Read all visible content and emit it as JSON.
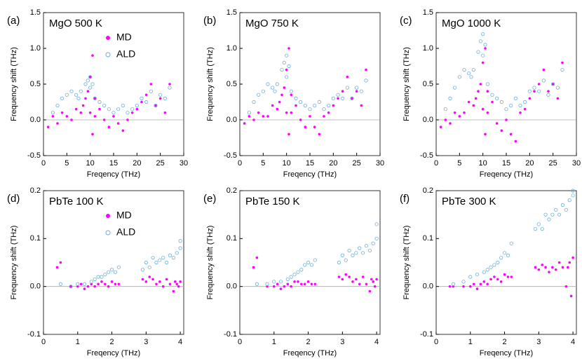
{
  "chart_data": [
    {
      "type": "scatter",
      "panel_label": "(a)",
      "title": "MgO 500 K",
      "xlabel": "Freqency (THz)",
      "ylabel": "Frequency shift (THz)",
      "xlim": [
        0,
        30
      ],
      "xticks": [
        0,
        5,
        10,
        15,
        20,
        25,
        30
      ],
      "ylim": [
        -0.5,
        1.5
      ],
      "yticks": [
        -0.5,
        {
          "value": 0,
          "label": "0.0"
        },
        0.5,
        {
          "value": 1,
          "label": "1.0"
        },
        1.5
      ],
      "legend": "upper center",
      "series": [
        {
          "name": "MD",
          "color": "#ff00ff",
          "marker": "filled",
          "x": [
            1,
            2,
            3,
            4,
            5,
            6,
            7,
            8,
            8.5,
            9,
            9.5,
            10,
            10,
            10.5,
            10.5,
            11,
            11,
            12,
            13,
            14,
            15,
            16,
            17,
            18,
            19,
            20,
            21,
            22,
            23,
            24,
            25,
            26,
            27
          ],
          "values": [
            -0.1,
            0.05,
            -0.05,
            0.1,
            0.05,
            0.0,
            0.15,
            0.1,
            0.2,
            0.3,
            0.4,
            0.6,
            0.1,
            0.9,
            -0.2,
            0.3,
            0.05,
            0.15,
            0.0,
            -0.1,
            0.05,
            -0.05,
            -0.15,
            0.0,
            0.1,
            0.15,
            0.25,
            0.35,
            0.5,
            0.2,
            0.3,
            0.1,
            0.5
          ]
        },
        {
          "name": "ALD",
          "color": "#6baed6",
          "marker": "hollow",
          "x": [
            2,
            3,
            4,
            5,
            6,
            7,
            7.5,
            8,
            9,
            9.5,
            10,
            10,
            10.5,
            11,
            12,
            13,
            14,
            15,
            16,
            17,
            18,
            19,
            20,
            21,
            22,
            23,
            24,
            25,
            26,
            27
          ],
          "values": [
            0.1,
            0.2,
            0.3,
            0.35,
            0.4,
            0.35,
            0.3,
            0.4,
            0.5,
            0.55,
            0.45,
            0.6,
            0.5,
            0.3,
            0.25,
            0.2,
            0.15,
            0.1,
            0.15,
            0.2,
            0.1,
            0.15,
            0.2,
            0.3,
            0.25,
            0.4,
            0.2,
            0.35,
            0.3,
            0.45
          ]
        }
      ]
    },
    {
      "type": "scatter",
      "panel_label": "(b)",
      "title": "MgO 750 K",
      "xlabel": "Freqency (THz)",
      "ylabel": "Frequency shift (THz)",
      "xlim": [
        0,
        30
      ],
      "xticks": [
        0,
        5,
        10,
        15,
        20,
        25,
        30
      ],
      "ylim": [
        -0.5,
        1.5
      ],
      "yticks": [
        -0.5,
        {
          "value": 0,
          "label": "0.0"
        },
        0.5,
        {
          "value": 1,
          "label": "1.0"
        },
        1.5
      ],
      "series": [
        {
          "color": "#ff00ff",
          "marker": "filled",
          "x": [
            1,
            2,
            3,
            4,
            5,
            6,
            7,
            8,
            8.5,
            9,
            9.5,
            10,
            10,
            10.5,
            10.5,
            11,
            11,
            12,
            13,
            14,
            15,
            16,
            17,
            18,
            19,
            20,
            21,
            22,
            23,
            24,
            25,
            26,
            27
          ],
          "values": [
            -0.05,
            0.05,
            0.0,
            0.1,
            0.05,
            0.05,
            0.2,
            0.15,
            0.25,
            0.35,
            0.45,
            0.7,
            0.1,
            1.0,
            -0.2,
            0.35,
            0.1,
            0.2,
            0.0,
            -0.1,
            0.05,
            -0.1,
            -0.2,
            0.05,
            0.1,
            0.2,
            0.3,
            0.4,
            0.6,
            0.3,
            0.4,
            0.2,
            0.7
          ]
        },
        {
          "color": "#6baed6",
          "marker": "hollow",
          "x": [
            2,
            3,
            4,
            5,
            6,
            7,
            7.5,
            8,
            9,
            9.5,
            10,
            10,
            10.5,
            11,
            12,
            13,
            14,
            15,
            16,
            17,
            18,
            19,
            20,
            21,
            22,
            23,
            24,
            25,
            26,
            27
          ],
          "values": [
            0.1,
            0.25,
            0.35,
            0.4,
            0.5,
            0.45,
            0.4,
            0.5,
            0.7,
            0.8,
            0.6,
            0.9,
            0.75,
            0.4,
            0.3,
            0.25,
            0.2,
            0.15,
            0.2,
            0.25,
            0.15,
            0.2,
            0.3,
            0.35,
            0.3,
            0.45,
            0.3,
            0.45,
            0.4,
            0.55
          ]
        }
      ]
    },
    {
      "type": "scatter",
      "panel_label": "(c)",
      "title": "MgO 1000 K",
      "xlabel": "Freqency (THz)",
      "ylabel": "Frequency shift (THz)",
      "xlim": [
        0,
        30
      ],
      "xticks": [
        0,
        5,
        10,
        15,
        20,
        25,
        30
      ],
      "ylim": [
        -0.5,
        1.5
      ],
      "yticks": [
        -0.5,
        {
          "value": 0,
          "label": "0.0"
        },
        0.5,
        {
          "value": 1,
          "label": "1.0"
        },
        1.5
      ],
      "series": [
        {
          "color": "#ff00ff",
          "marker": "filled",
          "x": [
            1,
            2,
            3,
            4,
            5,
            6,
            7,
            8,
            8.5,
            9,
            9.5,
            10,
            10,
            10.5,
            10.5,
            11,
            11,
            12,
            13,
            14,
            15,
            16,
            17,
            18,
            19,
            20,
            21,
            22,
            23,
            24,
            25,
            26,
            27
          ],
          "values": [
            -0.1,
            0.0,
            -0.05,
            0.1,
            0.05,
            0.1,
            0.25,
            0.2,
            0.3,
            0.4,
            0.5,
            0.8,
            0.15,
            1.0,
            -0.2,
            0.4,
            0.1,
            0.25,
            -0.05,
            -0.15,
            0.0,
            -0.2,
            -0.3,
            0.1,
            0.15,
            0.3,
            0.4,
            0.5,
            0.7,
            0.4,
            0.5,
            0.3,
            0.8
          ]
        },
        {
          "color": "#6baed6",
          "marker": "hollow",
          "x": [
            2,
            3,
            4,
            5,
            6,
            7,
            7.5,
            8,
            9,
            9.5,
            10,
            10,
            10.5,
            11,
            12,
            13,
            14,
            15,
            16,
            17,
            18,
            19,
            20,
            21,
            22,
            23,
            24,
            25,
            26,
            27
          ],
          "values": [
            0.15,
            0.3,
            0.45,
            0.6,
            0.7,
            0.65,
            0.6,
            0.7,
            0.95,
            1.1,
            0.9,
            1.2,
            1.05,
            0.5,
            0.35,
            0.3,
            0.25,
            0.15,
            0.2,
            0.3,
            0.2,
            0.25,
            0.4,
            0.45,
            0.4,
            0.55,
            0.35,
            0.5,
            0.45,
            0.7
          ]
        }
      ]
    },
    {
      "type": "scatter",
      "panel_label": "(d)",
      "title": "PbTe 100 K",
      "xlabel": "Freqency (THz)",
      "ylabel": "Frequency shift (THz)",
      "xlim": [
        0,
        4.1
      ],
      "xticks": [
        0,
        1,
        2,
        3,
        4
      ],
      "ylim": [
        -0.1,
        0.2
      ],
      "yticks": [
        -0.1,
        {
          "value": 0,
          "label": "0.0"
        },
        0.1,
        0.2
      ],
      "legend": "upper center",
      "series": [
        {
          "name": "MD",
          "color": "#ff00ff",
          "marker": "filled",
          "x": [
            0.4,
            0.5,
            0.8,
            1.0,
            1.1,
            1.2,
            1.3,
            1.4,
            1.5,
            1.6,
            1.7,
            1.8,
            1.9,
            2.0,
            2.1,
            2.2,
            2.9,
            3.0,
            3.1,
            3.2,
            3.3,
            3.4,
            3.5,
            3.6,
            3.7,
            3.8,
            3.85,
            3.9,
            3.95,
            4.0
          ],
          "values": [
            0.04,
            0.05,
            0.0,
            0.0,
            0.005,
            -0.005,
            0.0,
            0.005,
            0.0,
            0.005,
            0.01,
            0.005,
            0.0,
            0.01,
            0.005,
            0.005,
            0.015,
            0.01,
            0.02,
            0.015,
            0.005,
            0.01,
            0.0,
            0.015,
            0.005,
            -0.01,
            0.01,
            0.005,
            0.0,
            0.01
          ]
        },
        {
          "name": "ALD",
          "color": "#6baed6",
          "marker": "hollow",
          "x": [
            0.5,
            0.8,
            1.0,
            1.2,
            1.4,
            1.5,
            1.6,
            1.7,
            1.8,
            1.9,
            2.0,
            2.1,
            2.2,
            2.9,
            3.0,
            3.1,
            3.2,
            3.3,
            3.4,
            3.5,
            3.6,
            3.7,
            3.8,
            3.9,
            4.0,
            4.0
          ],
          "values": [
            0.005,
            0.0,
            0.005,
            0.005,
            0.01,
            0.015,
            0.02,
            0.02,
            0.025,
            0.03,
            0.035,
            0.03,
            0.04,
            0.035,
            0.05,
            0.04,
            0.06,
            0.05,
            0.055,
            0.06,
            0.05,
            0.065,
            0.06,
            0.07,
            0.08,
            0.095
          ]
        }
      ]
    },
    {
      "type": "scatter",
      "panel_label": "(e)",
      "title": "PbTe 150 K",
      "xlabel": "Freqency (THz)",
      "ylabel": "Frequency shift (THz)",
      "xlim": [
        0,
        4.1
      ],
      "xticks": [
        0,
        1,
        2,
        3,
        4
      ],
      "ylim": [
        -0.1,
        0.2
      ],
      "yticks": [
        -0.1,
        {
          "value": 0,
          "label": "0.0"
        },
        0.1,
        0.2
      ],
      "series": [
        {
          "color": "#ff00ff",
          "marker": "filled",
          "x": [
            0.4,
            0.5,
            0.8,
            1.0,
            1.1,
            1.2,
            1.3,
            1.4,
            1.5,
            1.6,
            1.7,
            1.8,
            1.9,
            2.0,
            2.1,
            2.2,
            2.9,
            3.0,
            3.1,
            3.2,
            3.3,
            3.4,
            3.5,
            3.6,
            3.7,
            3.8,
            3.85,
            3.9,
            3.95,
            4.0
          ],
          "values": [
            0.04,
            0.06,
            0.0,
            0.0,
            0.005,
            -0.005,
            0.0,
            0.005,
            0.0,
            0.01,
            0.01,
            0.005,
            0.005,
            0.01,
            0.005,
            0.005,
            0.02,
            0.015,
            0.025,
            0.02,
            0.01,
            0.015,
            0.005,
            0.02,
            0.005,
            -0.01,
            0.015,
            0.01,
            0.0,
            0.015
          ]
        },
        {
          "color": "#6baed6",
          "marker": "hollow",
          "x": [
            0.5,
            0.8,
            1.0,
            1.2,
            1.4,
            1.5,
            1.6,
            1.7,
            1.8,
            1.9,
            2.0,
            2.1,
            2.2,
            2.9,
            3.0,
            3.1,
            3.2,
            3.3,
            3.4,
            3.5,
            3.6,
            3.7,
            3.8,
            3.9,
            4.0,
            4.0
          ],
          "values": [
            0.005,
            0.005,
            0.01,
            0.01,
            0.015,
            0.02,
            0.025,
            0.03,
            0.035,
            0.045,
            0.05,
            0.045,
            0.055,
            0.05,
            0.065,
            0.055,
            0.075,
            0.065,
            0.07,
            0.08,
            0.07,
            0.085,
            0.075,
            0.09,
            0.1,
            0.13
          ]
        }
      ]
    },
    {
      "type": "scatter",
      "panel_label": "(f)",
      "title": "PbTe 300 K",
      "xlabel": "Freqency (THz)",
      "ylabel": "Frequency shift (THz)",
      "xlim": [
        0,
        4.1
      ],
      "xticks": [
        0,
        1,
        2,
        3,
        4
      ],
      "ylim": [
        -0.1,
        0.2
      ],
      "yticks": [
        -0.1,
        {
          "value": 0,
          "label": "0.0"
        },
        0.1,
        0.2
      ],
      "series": [
        {
          "color": "#ff00ff",
          "marker": "filled",
          "x": [
            0.4,
            0.5,
            0.8,
            1.0,
            1.1,
            1.2,
            1.3,
            1.4,
            1.5,
            1.6,
            1.7,
            1.8,
            1.9,
            2.0,
            2.1,
            2.2,
            2.9,
            3.0,
            3.1,
            3.2,
            3.3,
            3.4,
            3.5,
            3.6,
            3.7,
            3.8,
            3.85,
            3.9,
            3.95,
            4.0
          ],
          "values": [
            0.0,
            0.0,
            0.0,
            0.0,
            0.005,
            -0.005,
            0.005,
            0.01,
            0.005,
            0.015,
            0.02,
            0.015,
            0.01,
            0.025,
            0.02,
            0.02,
            0.04,
            0.035,
            0.045,
            0.04,
            0.03,
            0.04,
            0.035,
            0.05,
            0.04,
            0.0,
            0.04,
            0.05,
            -0.02,
            0.06
          ]
        },
        {
          "color": "#6baed6",
          "marker": "hollow",
          "x": [
            0.5,
            0.8,
            1.0,
            1.2,
            1.4,
            1.5,
            1.6,
            1.7,
            1.8,
            1.9,
            2.0,
            2.1,
            2.2,
            2.9,
            3.0,
            3.1,
            3.2,
            3.3,
            3.4,
            3.5,
            3.6,
            3.7,
            3.8,
            3.9,
            4.0,
            4.0
          ],
          "values": [
            0.005,
            0.01,
            0.02,
            0.025,
            0.03,
            0.035,
            0.04,
            0.045,
            0.05,
            0.06,
            0.07,
            0.065,
            0.09,
            0.12,
            0.13,
            0.12,
            0.15,
            0.14,
            0.15,
            0.16,
            0.15,
            0.17,
            0.16,
            0.18,
            0.19,
            0.2
          ]
        }
      ]
    }
  ]
}
